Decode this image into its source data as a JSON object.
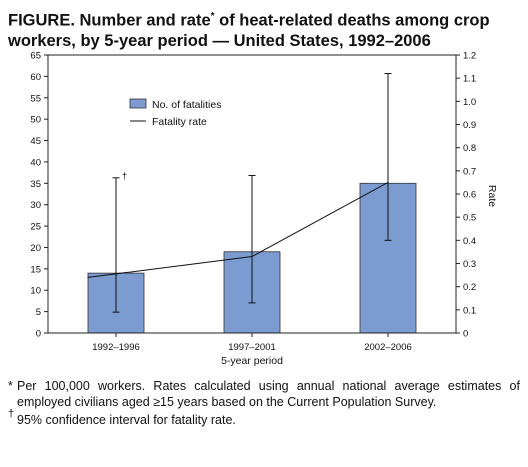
{
  "title": {
    "part1": "FIGURE. Number and rate",
    "footnote_mark": "*",
    "part2": " of heat-related deaths among crop workers, by 5-year period — United States, 1992–2006"
  },
  "chart_data": {
    "type": "bar+line",
    "categories": [
      "1992–1996",
      "1997–2001",
      "2002–2006"
    ],
    "xlabel": "5-year period",
    "ylabel_left": "",
    "ylabel_right": "Rate",
    "ylim_left": [
      0,
      65
    ],
    "yticks_left": [
      0,
      5,
      10,
      15,
      20,
      25,
      30,
      35,
      40,
      45,
      50,
      55,
      60,
      65
    ],
    "ylim_right": [
      0,
      1.2
    ],
    "yticks_right": [
      "0",
      "0.1",
      "0.2",
      "0.3",
      "0.4",
      "0.5",
      "0.6",
      "0.7",
      "0.8",
      "0.9",
      "1.0",
      "1.1",
      "1.2"
    ],
    "series": [
      {
        "name": "No. of fatalities",
        "type": "bar",
        "axis": "left",
        "values": [
          14,
          19,
          35
        ]
      },
      {
        "name": "Fatality rate",
        "type": "line",
        "axis": "right",
        "values": [
          0.24,
          0.33,
          0.65
        ],
        "ci_lower": [
          0.09,
          0.13,
          0.4
        ],
        "ci_upper": [
          0.67,
          0.68,
          1.12
        ]
      }
    ],
    "annotations": [
      {
        "text": "†",
        "category_index": 0
      }
    ],
    "colors": {
      "bar_fill": "#7b9bd1",
      "bar_stroke": "#333333",
      "line": "#111111"
    },
    "legend_position": "upper-left inside plot",
    "grid": false
  },
  "footnotes": [
    {
      "mark": "*",
      "text": "Per 100,000 workers. Rates calculated using annual national average estimates of employed civilians aged ≥15 years based on the Current Population Survey."
    },
    {
      "mark": "†",
      "text": "95% confidence interval for fatality rate."
    }
  ]
}
